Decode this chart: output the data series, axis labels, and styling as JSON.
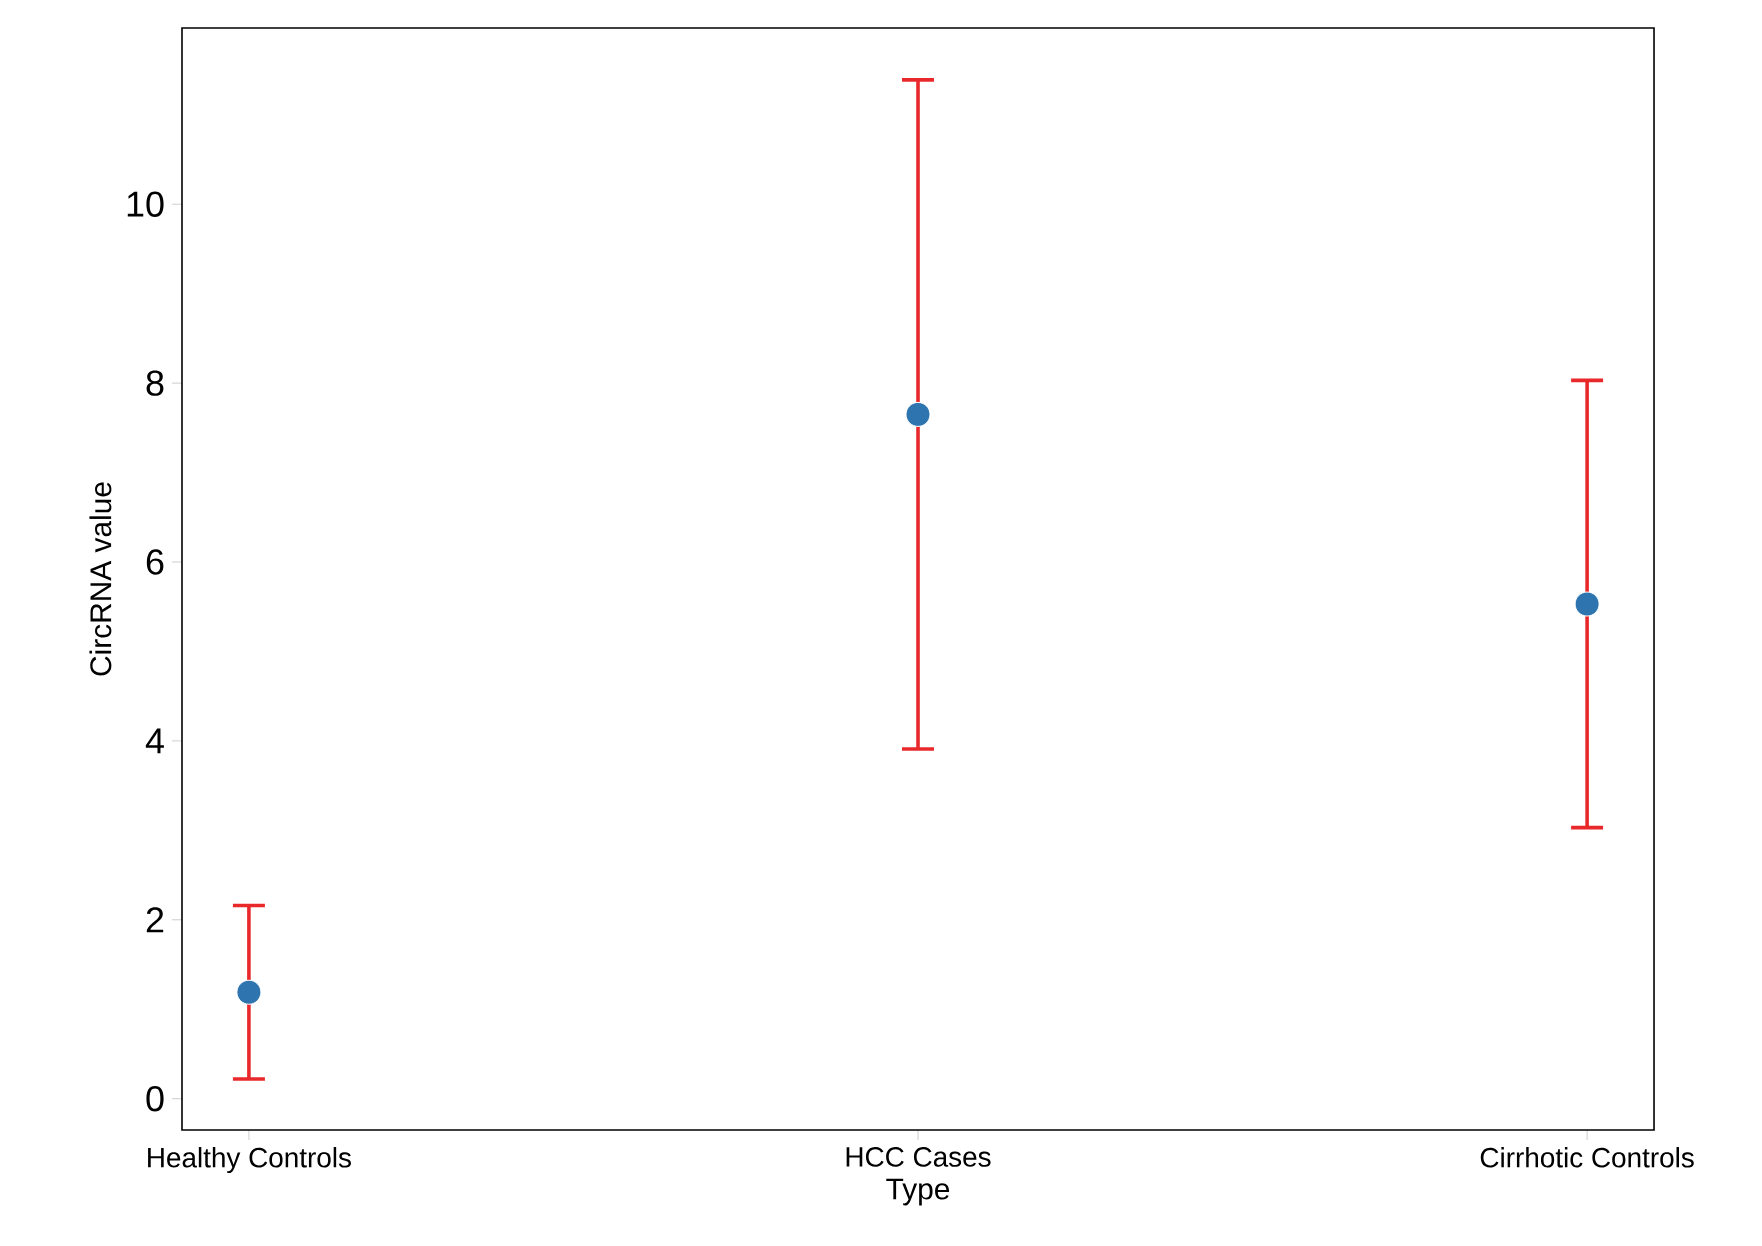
{
  "chart_data": {
    "type": "scatter",
    "xlabel": "Type",
    "ylabel": "CircRNA value",
    "categories": [
      "Healthy Controls",
      "HCC Cases",
      "Cirrhotic Controls"
    ],
    "values": [
      1.19,
      7.65,
      5.53
    ],
    "errors": [
      0.97,
      3.74,
      2.5
    ],
    "color": "#2e75b0",
    "ylim": [
      -0.35,
      11.97
    ],
    "yticks": [
      0,
      2,
      4,
      6,
      8,
      10
    ]
  }
}
